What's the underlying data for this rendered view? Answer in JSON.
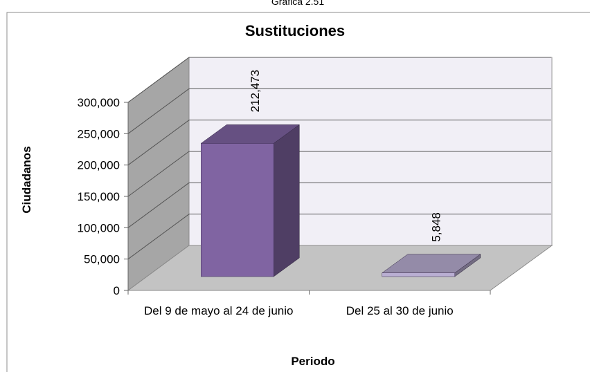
{
  "caption": "Gráfica 2.51",
  "chart_data": {
    "type": "bar3d",
    "title": "Sustituciones",
    "categories": [
      "Del 9 de mayo al 24 de junio",
      "Del 25 al 30 de junio"
    ],
    "values": [
      212473,
      5848
    ],
    "value_labels": [
      "212,473",
      "5,848"
    ],
    "colors": [
      "#8064a2",
      "#b9aed2"
    ],
    "xlabel": "Periodo",
    "ylabel": "Ciudadanos",
    "ylim": [
      0,
      300000
    ],
    "yticks": [
      0,
      {
        "value": 50000,
        "label": "50,000"
      },
      {
        "value": 100000,
        "label": "100,000"
      },
      {
        "value": 150000,
        "label": "150,000"
      },
      {
        "value": 200000,
        "label": "200,000"
      },
      {
        "value": 250000,
        "label": "250,000"
      },
      {
        "value": 300000,
        "label": "300,000"
      }
    ],
    "grid": true
  }
}
